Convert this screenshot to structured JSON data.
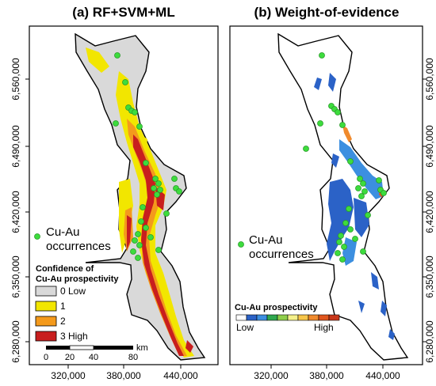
{
  "panels": [
    {
      "title": "(a) RF+SVM+ML",
      "y_ticks": [
        "6,560,000",
        "6,490,000",
        "6,420,000",
        "6,350,000",
        "6,280,000"
      ],
      "x_ticks": [
        "320,000",
        "380,000",
        "440,000"
      ],
      "occurrence_label_1": "Cu-Au",
      "occurrence_label_2": "occurrences",
      "legend": {
        "title_1": "Confidence of",
        "title_2": "Cu-Au prospectivity",
        "items": [
          {
            "label": "0 Low",
            "color": "#d9d9d9"
          },
          {
            "label": "1",
            "color": "#f2e600"
          },
          {
            "label": "2",
            "color": "#f49a1c"
          },
          {
            "label": "3 High",
            "color": "#c81e1e"
          }
        ]
      },
      "scale_bar": {
        "labels": [
          "0",
          "20",
          "40",
          "80"
        ],
        "unit": "km"
      }
    },
    {
      "title": "(b) Weight-of-evidence",
      "y_ticks": [
        "6,560,000",
        "6,490,000",
        "6,420,000",
        "6,350,000",
        "6,280,000"
      ],
      "x_ticks": [
        "320,000",
        "380,000",
        "440,000"
      ],
      "occurrence_label_1": "Cu-Au",
      "occurrence_label_2": "occurrences",
      "legend": {
        "title": "Cu-Au prospectivity",
        "low": "Low",
        "high": "High",
        "ramp": [
          "#ffffff",
          "#2b62c7",
          "#3c8fe0",
          "#2fa84f",
          "#8fce4a",
          "#f4f08a",
          "#f7c64a",
          "#f08a2c",
          "#e0561e",
          "#c8361a"
        ]
      }
    }
  ],
  "colors": {
    "occurrence": "#3ddc3d",
    "occurrence_stroke": "#2a9a2a"
  }
}
